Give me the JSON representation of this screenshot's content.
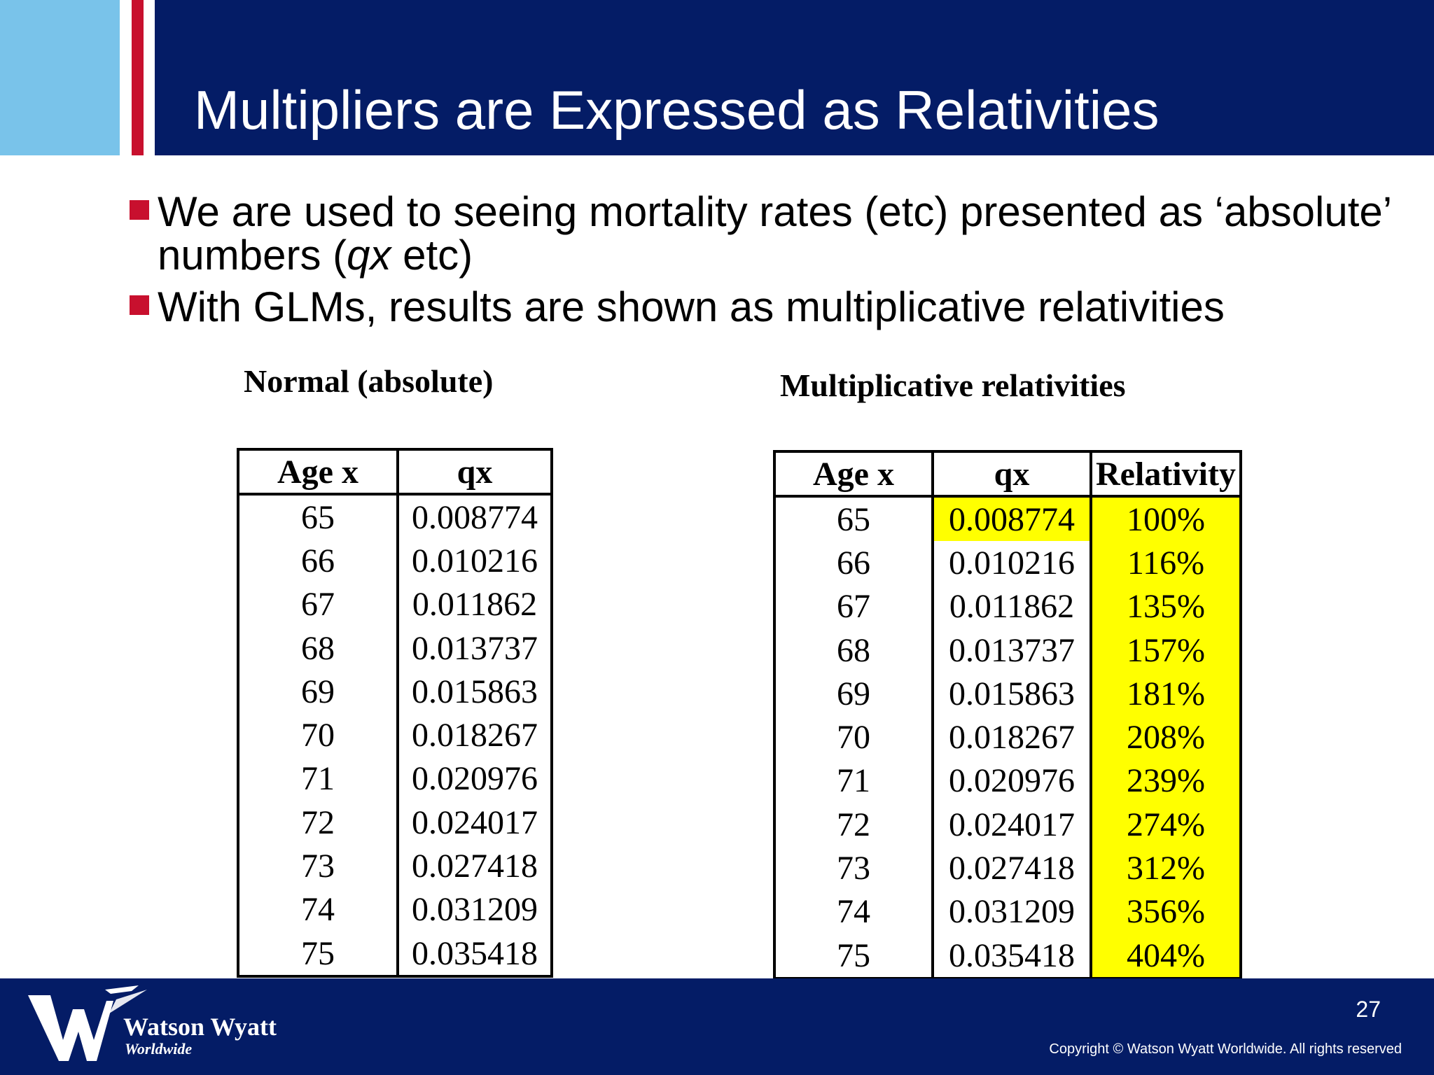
{
  "slide": {
    "title": "Multipliers are Expressed as Relativities",
    "bullets": [
      {
        "before": "We are used to seeing mortality rates (etc) presented as ‘absolute’ numbers (",
        "em": "qx",
        "after": " etc)"
      },
      {
        "before": "With GLMs, results are shown as multiplicative relativities",
        "em": "",
        "after": ""
      }
    ]
  },
  "left_table": {
    "caption": "Normal (absolute)",
    "headers": [
      "Age x",
      "qx"
    ],
    "rows": [
      [
        "65",
        "0.008774"
      ],
      [
        "66",
        "0.010216"
      ],
      [
        "67",
        "0.011862"
      ],
      [
        "68",
        "0.013737"
      ],
      [
        "69",
        "0.015863"
      ],
      [
        "70",
        "0.018267"
      ],
      [
        "71",
        "0.020976"
      ],
      [
        "72",
        "0.024017"
      ],
      [
        "73",
        "0.027418"
      ],
      [
        "74",
        "0.031209"
      ],
      [
        "75",
        "0.035418"
      ]
    ]
  },
  "right_table": {
    "caption": "Multiplicative relativities",
    "headers": [
      "Age x",
      "qx",
      "Relativity"
    ],
    "rows": [
      [
        "65",
        "0.008774",
        "100%"
      ],
      [
        "66",
        "0.010216",
        "116%"
      ],
      [
        "67",
        "0.011862",
        "135%"
      ],
      [
        "68",
        "0.013737",
        "157%"
      ],
      [
        "69",
        "0.015863",
        "181%"
      ],
      [
        "70",
        "0.018267",
        "208%"
      ],
      [
        "71",
        "0.020976",
        "239%"
      ],
      [
        "72",
        "0.024017",
        "274%"
      ],
      [
        "73",
        "0.027418",
        "312%"
      ],
      [
        "74",
        "0.031209",
        "356%"
      ],
      [
        "75",
        "0.035418",
        "404%"
      ]
    ],
    "highlight_color": "#ffff00"
  },
  "footer": {
    "logo_name": "Watson Wyatt",
    "logo_sub": "Worldwide",
    "page_number": "27",
    "copyright": "Copyright © Watson Wyatt Worldwide. All rights reserved"
  },
  "colors": {
    "header_navy": "#041c66",
    "header_light_blue": "#79c3ea",
    "accent_red": "#c8102e"
  }
}
